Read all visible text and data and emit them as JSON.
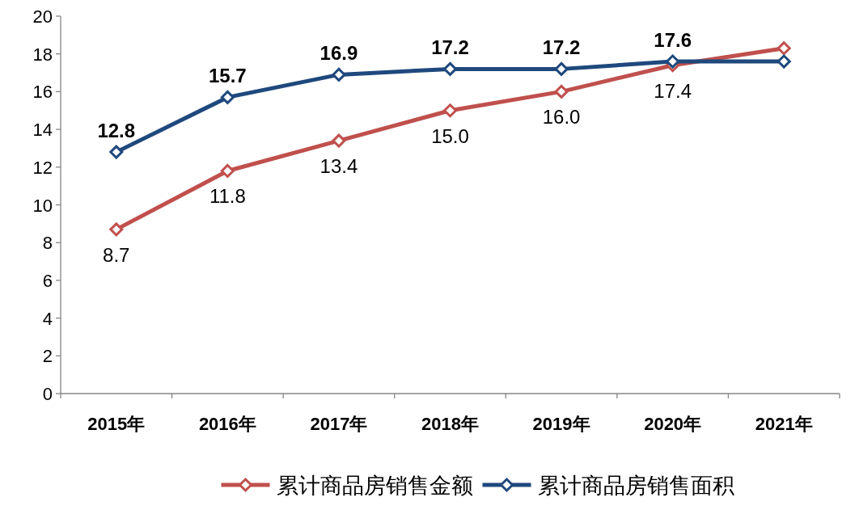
{
  "chart_data": {
    "type": "line",
    "categories": [
      "2015年",
      "2016年",
      "2017年",
      "2018年",
      "2019年",
      "2020年",
      "2021年"
    ],
    "series": [
      {
        "name": "累计商品房销售金额",
        "color": "#c0504d",
        "values": [
          8.7,
          11.8,
          13.4,
          15.0,
          16.0,
          17.4,
          18.3
        ],
        "value_labels": [
          "8.7",
          "11.8",
          "13.4",
          "15.0",
          "16.0",
          "17.4",
          null
        ]
      },
      {
        "name": "累计商品房销售面积",
        "color": "#1f497d",
        "values": [
          12.8,
          15.7,
          16.9,
          17.2,
          17.2,
          17.6,
          17.6
        ],
        "value_labels": [
          "12.8",
          "15.7",
          "16.9",
          "17.2",
          "17.2",
          "17.6",
          null
        ]
      }
    ],
    "ylim": [
      0,
      20
    ],
    "yticks": [
      0,
      2,
      4,
      6,
      8,
      10,
      12,
      14,
      16,
      18,
      20
    ],
    "grid": false,
    "legend": "bottom",
    "marker": "diamond",
    "line_style": "solid"
  }
}
